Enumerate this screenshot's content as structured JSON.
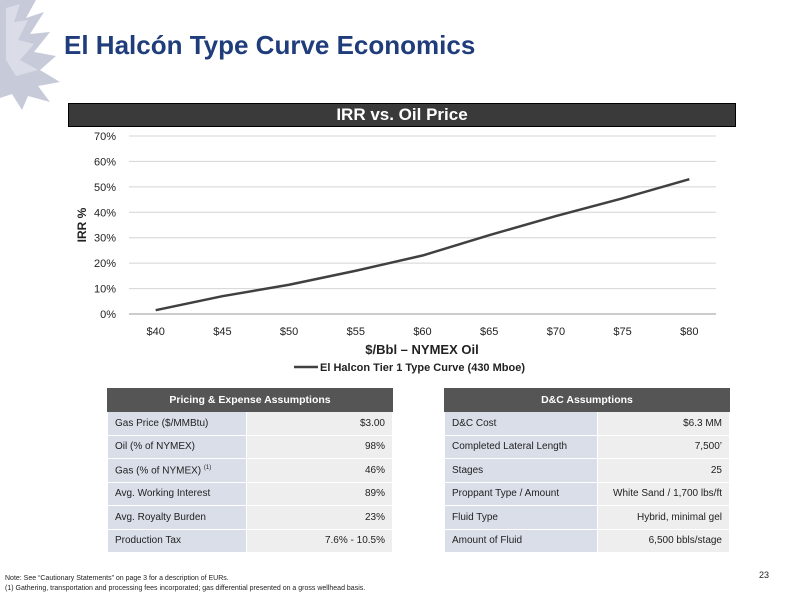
{
  "page": {
    "title": "El Halcón Type Curve Economics",
    "page_number": "23"
  },
  "chart_data": {
    "type": "line",
    "title": "IRR vs. Oil Price",
    "xlabel": "$/Bbl – NYMEX Oil",
    "ylabel": "IRR %",
    "categories": [
      "$40",
      "$45",
      "$50",
      "$55",
      "$60",
      "$65",
      "$70",
      "$75",
      "$80"
    ],
    "x": [
      40,
      45,
      50,
      55,
      60,
      65,
      70,
      75,
      80
    ],
    "xlim": [
      40,
      80
    ],
    "ylim": [
      0,
      70
    ],
    "yticks": [
      "0%",
      "10%",
      "20%",
      "30%",
      "40%",
      "50%",
      "60%",
      "70%"
    ],
    "grid": true,
    "legend_position": "bottom",
    "series": [
      {
        "name": "El Halcon Tier 1 Type Curve (430 Mboe)",
        "color": "#404040",
        "values": [
          1.5,
          7,
          11.5,
          17,
          23,
          31,
          38.5,
          45.5,
          53
        ]
      }
    ]
  },
  "pricing_table": {
    "header": "Pricing & Expense Assumptions",
    "rows": [
      {
        "label": "Gas Price ($/MMBtu)",
        "value": "$3.00"
      },
      {
        "label": "Oil (% of NYMEX)",
        "value": "98%"
      },
      {
        "label": "Gas (% of NYMEX)",
        "note": "(1)",
        "value": "46%"
      },
      {
        "label": "Avg. Working Interest",
        "value": "89%"
      },
      {
        "label": "Avg. Royalty Burden",
        "value": "23%"
      },
      {
        "label": "Production Tax",
        "value": "7.6% - 10.5%"
      }
    ]
  },
  "dc_table": {
    "header": "D&C Assumptions",
    "rows": [
      {
        "label": "D&C Cost",
        "value": "$6.3 MM"
      },
      {
        "label": "Completed Lateral Length",
        "value": "7,500’"
      },
      {
        "label": "Stages",
        "value": "25"
      },
      {
        "label": "Proppant Type / Amount",
        "value": "White Sand / 1,700 lbs/ft"
      },
      {
        "label": "Fluid Type",
        "value": "Hybrid, minimal gel"
      },
      {
        "label": "Amount of Fluid",
        "value": "6,500 bbls/stage"
      }
    ]
  },
  "footnote": {
    "note": "Note: See “Cautionary Statements” on page 3 for a description of EURs.",
    "item_1": "(1)     Gathering, transportation and processing fees incorporated; gas differential presented on a gross wellhead basis."
  },
  "colors": {
    "title": "#1f3d7a",
    "logo": "#c7cad8",
    "banner": "#3a3a3a",
    "table_header": "#555555",
    "label_cell": "#d9dee9",
    "value_cell": "#eeeeee"
  }
}
